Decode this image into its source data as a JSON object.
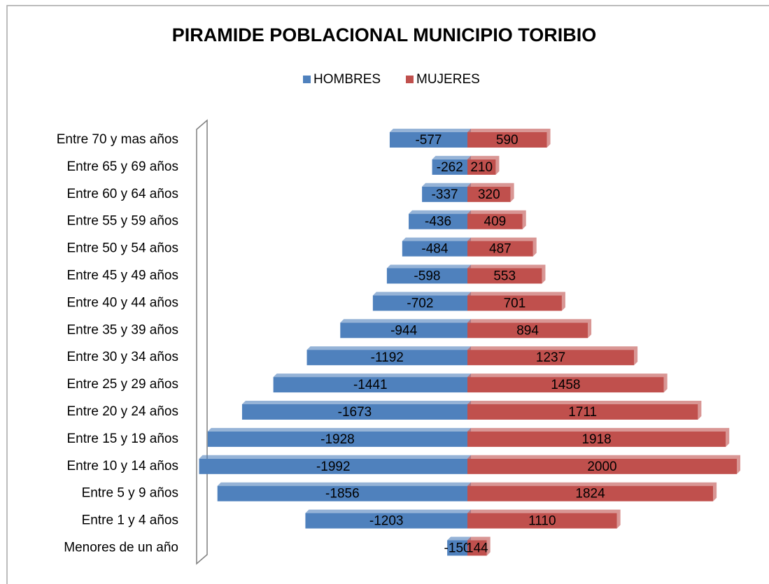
{
  "chart_data": {
    "type": "pyramid",
    "title": "PIRAMIDE POBLACIONAL MUNICIPIO TORIBIO",
    "categories": [
      "Entre 70 y mas años",
      "Entre 65 y 69 años",
      "Entre 60 y 64 años",
      "Entre 55 y 59 años",
      "Entre 50 y 54 años",
      "Entre 45 y 49 años",
      "Entre 40 y 44 años",
      "Entre 35 y 39 años",
      "Entre 30 y 34 años",
      "Entre 25 y 29 años",
      "Entre 20 y 24 años",
      "Entre 15 y 19 años",
      "Entre 10 y 14 años",
      "Entre 5 y 9 años",
      "Entre 1 y 4 años",
      "Menores de un año"
    ],
    "series": [
      {
        "name": "HOMBRES",
        "color": "#4f81bd",
        "values": [
          -577,
          -262,
          -337,
          -436,
          -484,
          -598,
          -702,
          -944,
          -1192,
          -1441,
          -1673,
          -1928,
          -1992,
          -1856,
          -1203,
          -150
        ]
      },
      {
        "name": "MUJERES",
        "color": "#c0504d",
        "values": [
          590,
          210,
          320,
          409,
          487,
          553,
          701,
          894,
          1237,
          1458,
          1711,
          1918,
          2000,
          1824,
          1110,
          144
        ]
      }
    ],
    "xlim": [
      -2000,
      2000
    ],
    "legend": "top"
  }
}
